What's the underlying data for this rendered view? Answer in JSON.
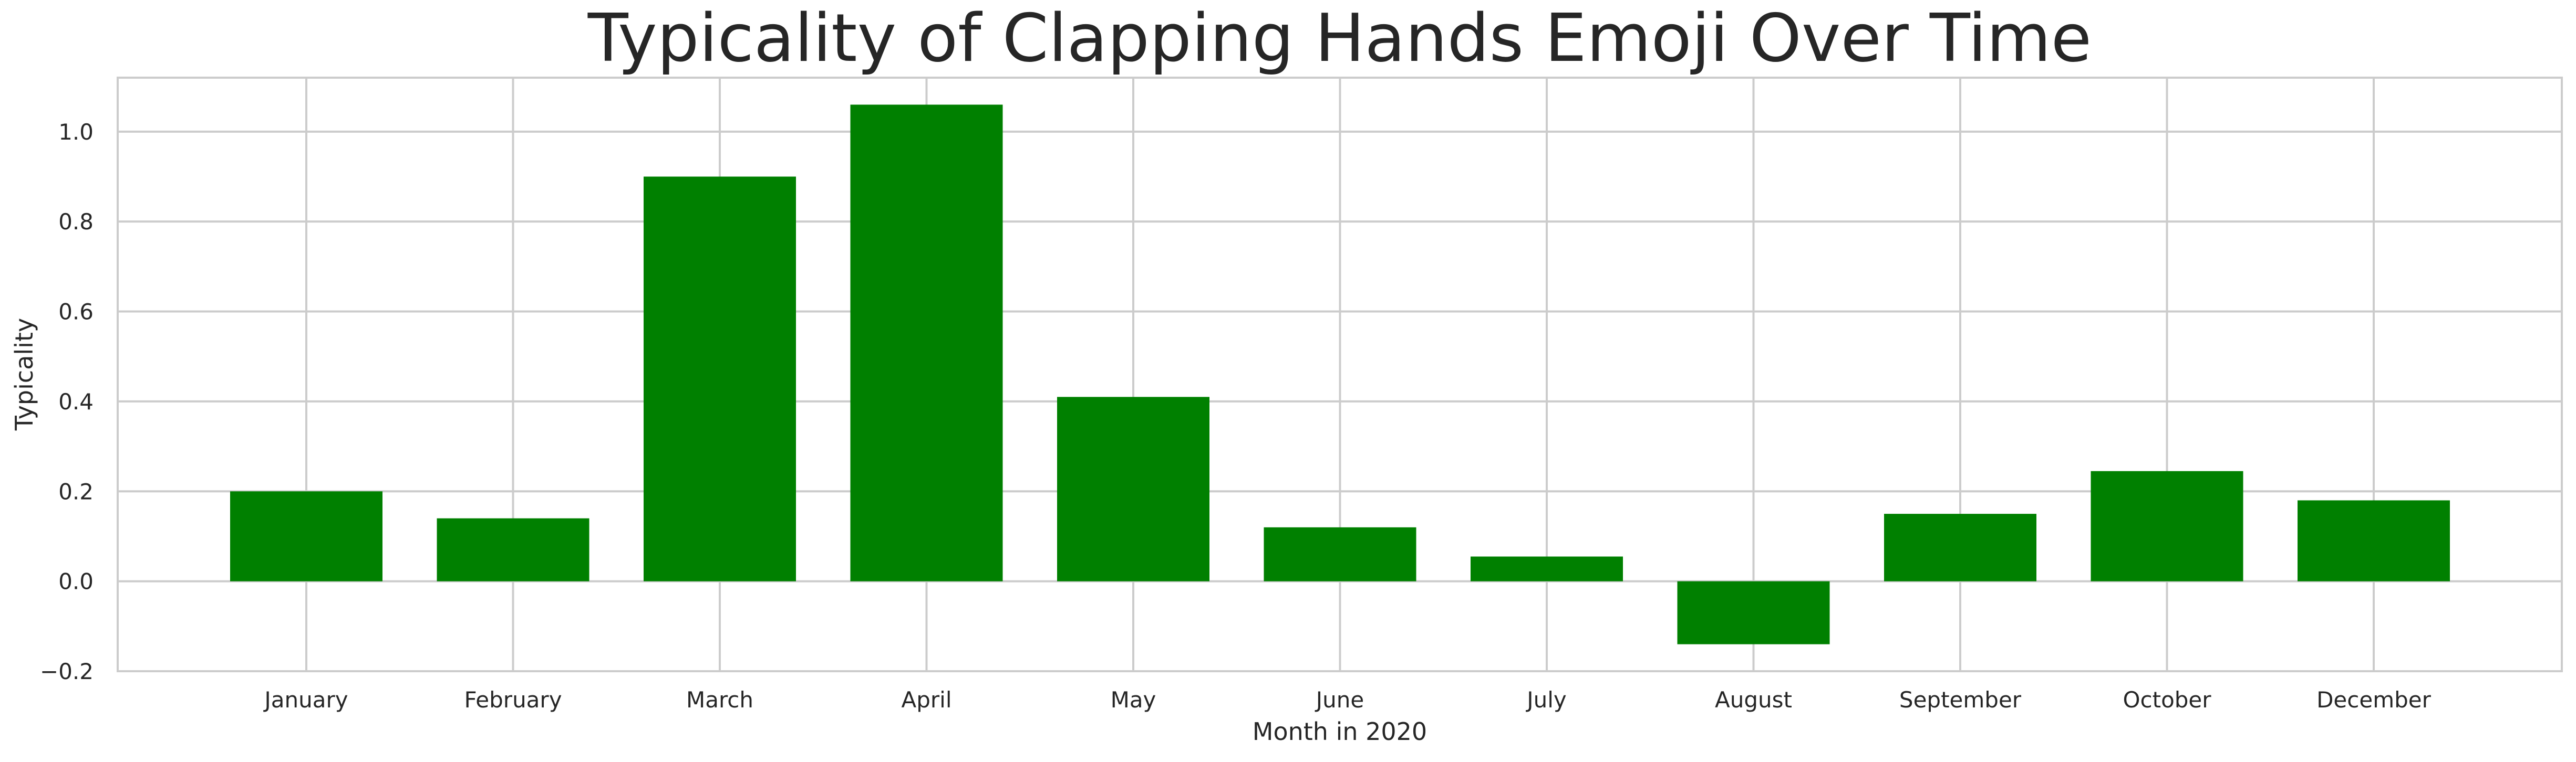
{
  "chart_data": {
    "type": "bar",
    "title": "Typicality of Clapping Hands Emoji Over Time",
    "xlabel": "Month in 2020",
    "ylabel": "Typicality",
    "categories": [
      "January",
      "February",
      "March",
      "April",
      "May",
      "June",
      "July",
      "August",
      "September",
      "October",
      "December"
    ],
    "values": [
      0.2,
      0.14,
      0.9,
      1.06,
      0.41,
      0.12,
      0.055,
      -0.14,
      0.15,
      0.245,
      0.18
    ],
    "ylim": [
      -0.2,
      1.12
    ],
    "yticks": [
      -0.2,
      0.0,
      0.2,
      0.4,
      0.6,
      0.8,
      1.0
    ],
    "ytick_labels": [
      "−0.2",
      "0.0",
      "0.2",
      "0.4",
      "0.6",
      "0.8",
      "1.0"
    ],
    "grid": true,
    "bar_color": "#008000",
    "grid_color": "#cccccc",
    "spine_color": "#cccccc",
    "text_color": "#262626"
  }
}
